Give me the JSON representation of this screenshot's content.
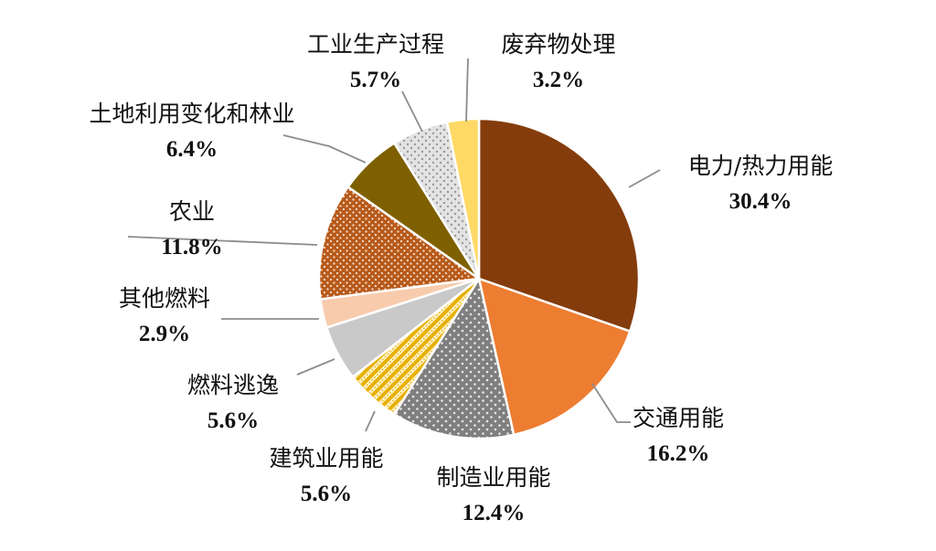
{
  "chart_data": {
    "type": "pie",
    "start_angle_deg": 0,
    "direction": "clockwise",
    "slices": [
      {
        "name": "电力/热力用能",
        "value": 30.4,
        "label": "30.4%",
        "color": "#843C0C",
        "pattern": "solid"
      },
      {
        "name": "交通用能",
        "value": 16.2,
        "label": "16.2%",
        "color": "#ED7D31",
        "pattern": "solid"
      },
      {
        "name": "制造业用能",
        "value": 12.4,
        "label": "12.4%",
        "color": "#7F7F7F",
        "pattern": "dots-white"
      },
      {
        "name": "建筑业用能",
        "value": 5.6,
        "label": "5.6%",
        "color": "#FFC000",
        "pattern": "diagonal-dotted"
      },
      {
        "name": "燃料逃逸",
        "value": 5.6,
        "label": "5.6%",
        "color": "#C9C9C9",
        "pattern": "solid"
      },
      {
        "name": "其他燃料",
        "value": 2.9,
        "label": "2.9%",
        "color": "#F8CBAD",
        "pattern": "solid"
      },
      {
        "name": "农业",
        "value": 11.8,
        "label": "11.8%",
        "color": "#C55A11",
        "pattern": "dots-white"
      },
      {
        "name": "土地利用变化和林业",
        "value": 6.4,
        "label": "6.4%",
        "color": "#7F6000",
        "pattern": "solid"
      },
      {
        "name": "工业生产过程",
        "value": 5.7,
        "label": "5.7%",
        "color": "#D9D9D9",
        "pattern": "dots-gray"
      },
      {
        "name": "废弃物处理",
        "value": 3.2,
        "label": "3.2%",
        "color": "#FFD966",
        "pattern": "solid"
      }
    ]
  }
}
